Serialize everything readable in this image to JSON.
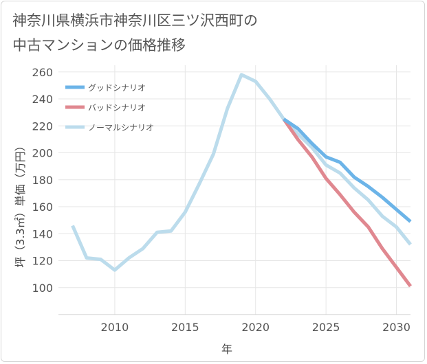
{
  "chart_data": {
    "type": "line",
    "title": "神奈川県横浜市神奈川区三ツ沢西町の\n中古マンションの価格推移",
    "xlabel": "年",
    "ylabel": "坪（3.3㎡）単価（万円）",
    "xlim": [
      2006,
      2031
    ],
    "ylim": [
      80,
      265
    ],
    "xticks": [
      2010,
      2015,
      2020,
      2025,
      2030
    ],
    "yticks": [
      100,
      120,
      140,
      160,
      180,
      200,
      220,
      240,
      260
    ],
    "legend_position": "top-left",
    "series": [
      {
        "name": "グッドシナリオ",
        "color": "#6cb4e8",
        "x": [
          2022,
          2023,
          2024,
          2025,
          2026,
          2027,
          2028,
          2029,
          2030,
          2031
        ],
        "values": [
          225,
          218,
          207,
          197,
          193,
          182,
          175,
          167,
          158,
          149
        ]
      },
      {
        "name": "バッドシナリオ",
        "color": "#e08890",
        "x": [
          2022,
          2023,
          2024,
          2025,
          2026,
          2027,
          2028,
          2029,
          2030,
          2031
        ],
        "values": [
          225,
          210,
          197,
          181,
          169,
          156,
          145,
          129,
          115,
          101
        ]
      },
      {
        "name": "ノーマルシナリオ",
        "color": "#bcdcec",
        "x": [
          2007,
          2008,
          2009,
          2010,
          2011,
          2012,
          2013,
          2014,
          2015,
          2016,
          2017,
          2018,
          2019,
          2020,
          2021,
          2022,
          2023,
          2024,
          2025,
          2026,
          2027,
          2028,
          2029,
          2030,
          2031
        ],
        "values": [
          146,
          122,
          121,
          113,
          122,
          129,
          141,
          142,
          156,
          177,
          199,
          233,
          258,
          253,
          240,
          225,
          214,
          204,
          191,
          185,
          174,
          165,
          153,
          145,
          132
        ]
      }
    ]
  }
}
